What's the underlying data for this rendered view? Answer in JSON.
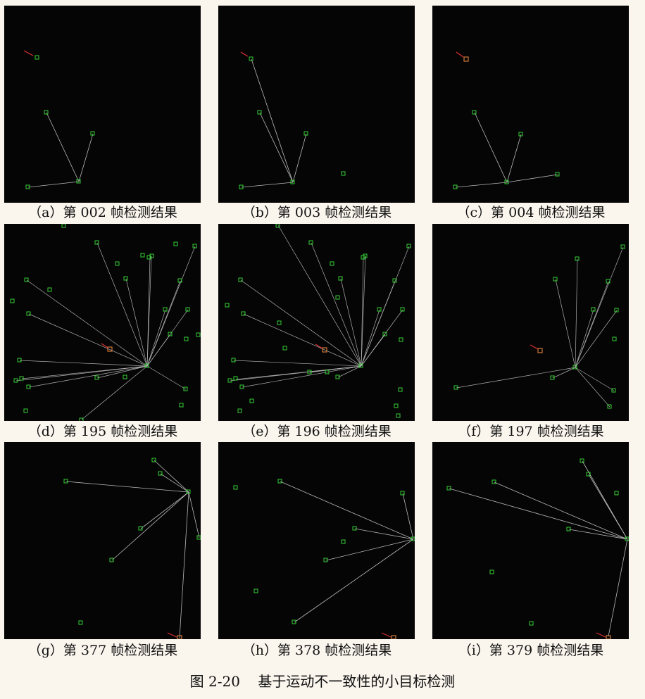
{
  "panels": [
    {
      "caption": "（a）第 002 帧检测结果"
    },
    {
      "caption": "（b）第 003 帧检测结果"
    },
    {
      "caption": "（c）第 004 帧检测结果"
    },
    {
      "caption": "（d）第 195 帧检测结果"
    },
    {
      "caption": "（e）第 196 帧检测结果"
    },
    {
      "caption": "（f）第 197 帧检测结果"
    },
    {
      "caption": "（g）第 377 帧检测结果"
    },
    {
      "caption": "（h）第 378 帧检测结果"
    },
    {
      "caption": "（i）第 379 帧检测结果"
    }
  ],
  "figure_caption": "图 2-20    基于运动不一致性的小目标检测",
  "colors": {
    "detection_box": "#35d035",
    "target_box": "#d07a3a",
    "track_line": "#d8d8d8",
    "arrow": "#e03030",
    "panel_background": "#050505",
    "page_background": "#faf5ed"
  }
}
